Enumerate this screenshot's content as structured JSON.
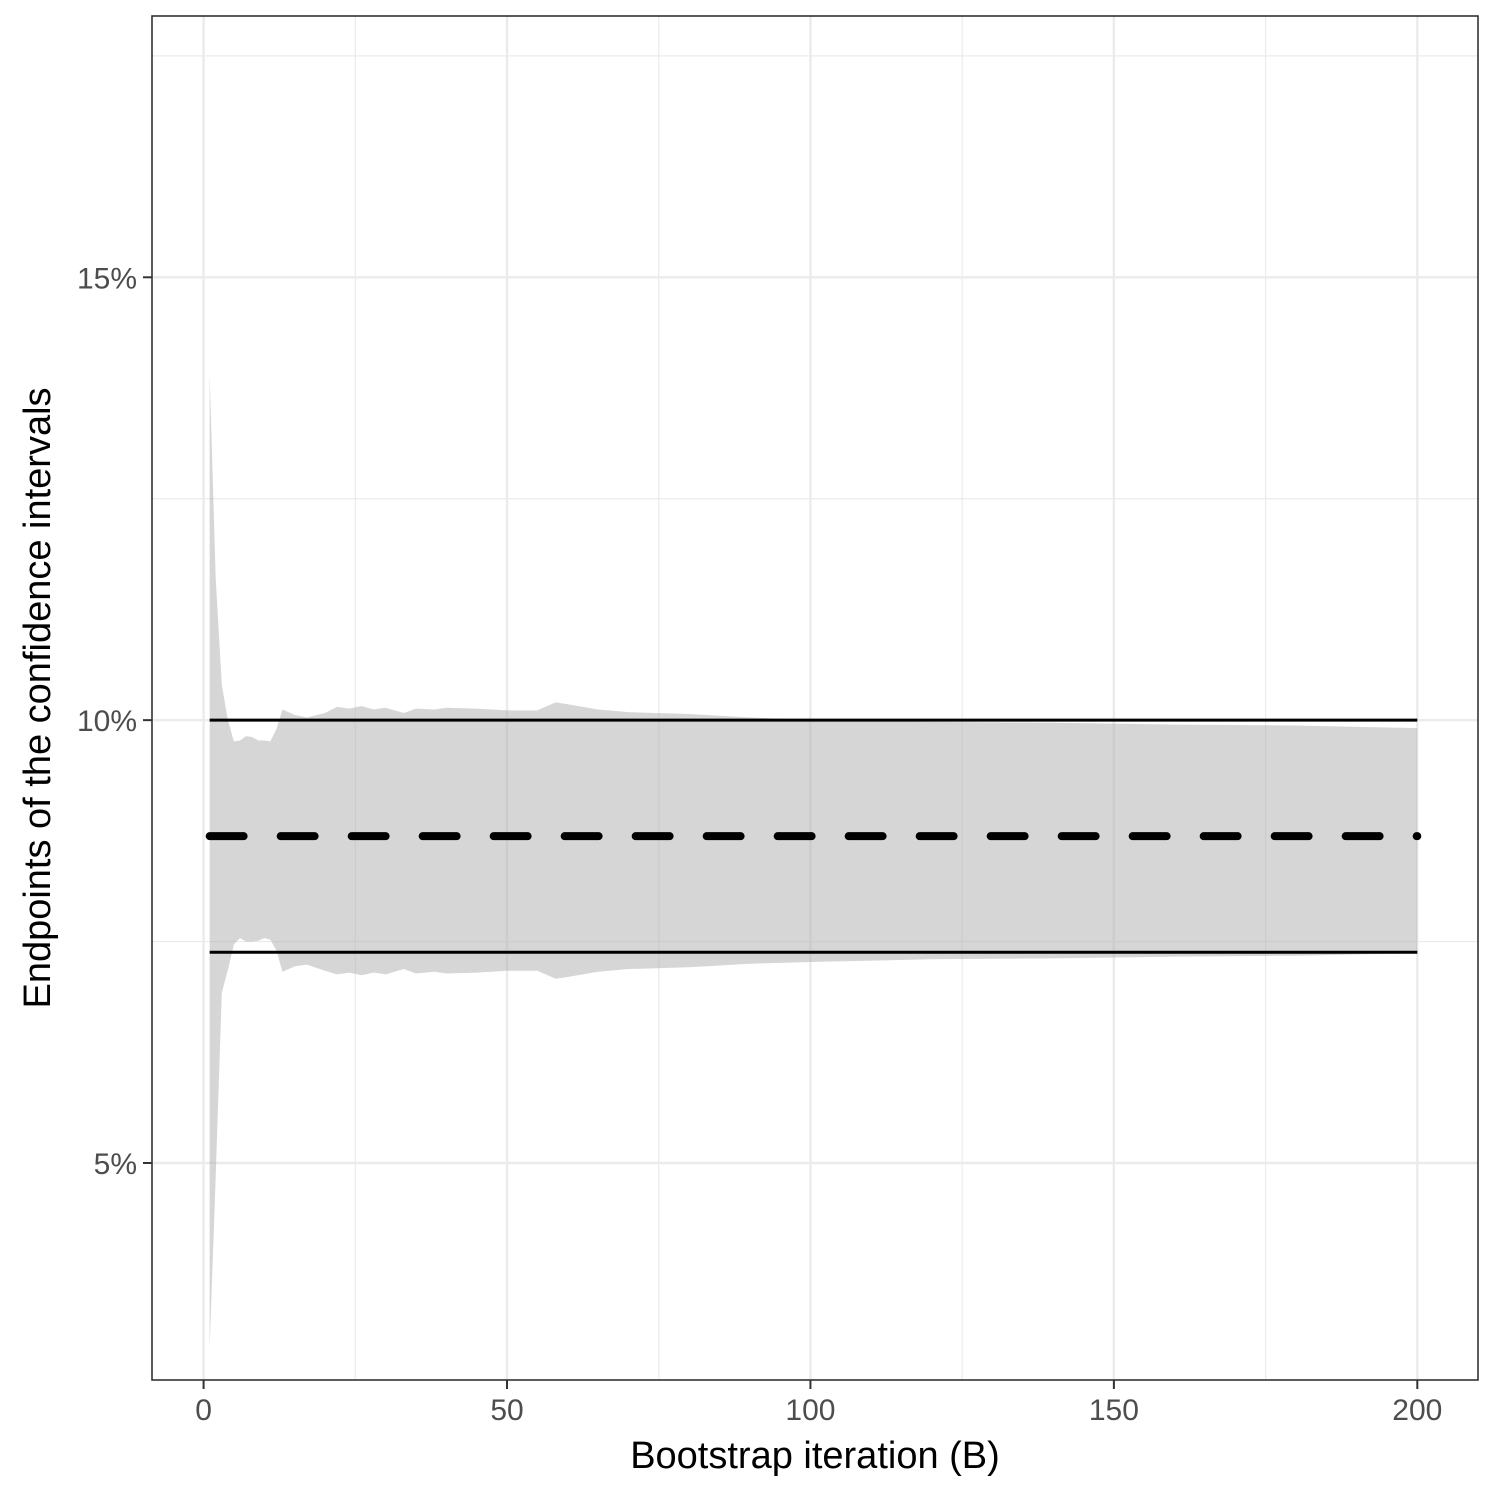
{
  "chart_data": {
    "type": "area",
    "xlabel": "Bootstrap iteration (B)",
    "ylabel": "Endpoints of the confidence intervals",
    "xlim": [
      -8.5,
      210
    ],
    "ylim": [
      0.0255,
      0.1795
    ],
    "x_ticks": [
      0,
      50,
      100,
      150,
      200
    ],
    "x_tick_labels": [
      "0",
      "50",
      "100",
      "150",
      "200"
    ],
    "y_ticks": [
      0.05,
      0.1,
      0.15
    ],
    "y_tick_labels": [
      "5%",
      "10%",
      "15%"
    ],
    "grid": true,
    "band": {
      "x": [
        1,
        2,
        3,
        4,
        5,
        6,
        7,
        8,
        9,
        10,
        11,
        12,
        13,
        15,
        17,
        20,
        22,
        24,
        26,
        28,
        30,
        33,
        35,
        38,
        40,
        45,
        50,
        55,
        58,
        60,
        65,
        70,
        80,
        90,
        100,
        120,
        140,
        160,
        180,
        200
      ],
      "upper": [
        0.139,
        0.116,
        0.104,
        0.1,
        0.0976,
        0.0977,
        0.0982,
        0.0981,
        0.0977,
        0.0977,
        0.0976,
        0.099,
        0.1012,
        0.1006,
        0.1003,
        0.1008,
        0.1015,
        0.1013,
        0.1016,
        0.1012,
        0.1014,
        0.1008,
        0.1013,
        0.1012,
        0.1014,
        0.1013,
        0.1011,
        0.1011,
        0.102,
        0.1018,
        0.1012,
        0.1009,
        0.1007,
        0.1003,
        0.1,
        0.0998,
        0.0997,
        0.0995,
        0.0994,
        0.0991
      ],
      "lower": [
        0.0292,
        0.0485,
        0.0692,
        0.0718,
        0.0747,
        0.0754,
        0.075,
        0.075,
        0.0751,
        0.0754,
        0.0752,
        0.074,
        0.0716,
        0.0722,
        0.0724,
        0.0717,
        0.0713,
        0.0715,
        0.0712,
        0.0715,
        0.0713,
        0.0719,
        0.0714,
        0.0716,
        0.0714,
        0.0715,
        0.0717,
        0.0717,
        0.0708,
        0.071,
        0.0716,
        0.0719,
        0.0721,
        0.0725,
        0.0727,
        0.073,
        0.0731,
        0.0733,
        0.0734,
        0.0737
      ]
    },
    "lines": [
      {
        "style": "solid",
        "x": [
          1,
          200
        ],
        "y": [
          0.1,
          0.1
        ]
      },
      {
        "style": "solid",
        "x": [
          1,
          200
        ],
        "y": [
          0.0738,
          0.0738
        ]
      },
      {
        "style": "dashed",
        "x": [
          1,
          200
        ],
        "y": [
          0.0869,
          0.0869
        ]
      }
    ],
    "colors": {
      "band": "#d5d5d5",
      "lines": "#000000",
      "grid": "#ebebeb",
      "panel_border": "#333333"
    }
  }
}
